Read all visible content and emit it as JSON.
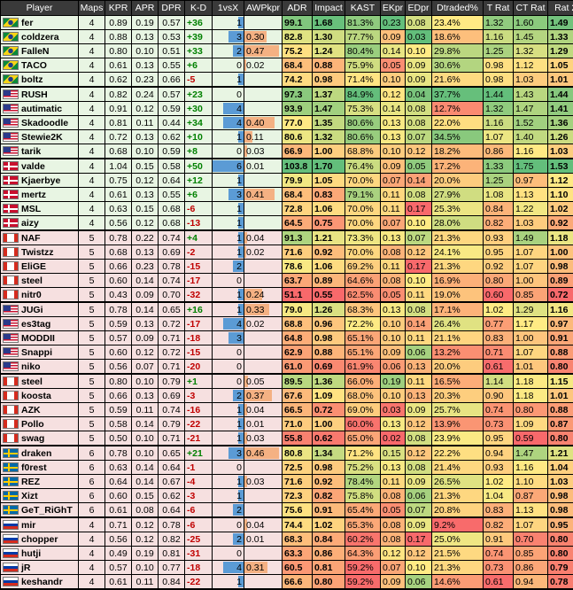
{
  "headers": [
    "Player",
    "Maps",
    "KPR",
    "APR",
    "DPR",
    "K-D",
    "1vsX",
    "AWPkpr",
    "ADR",
    "Impact",
    "KAST",
    "EKpr",
    "EDpr",
    "Dtraded%",
    "T Rat",
    "CT Rat",
    "Rat 2.0"
  ],
  "teams": [
    {
      "flag": "BR",
      "bg": "#e8f5e3",
      "players": [
        {
          "name": "fer",
          "maps": "4",
          "kpr": "0.89",
          "apr": "0.19",
          "dpr": "0.57",
          "kd": "+36",
          "onevx": "1",
          "awp": "",
          "adr": "99.1",
          "impact": "1.68",
          "kast": "81.3%",
          "ekpr": "0.23",
          "edpr": "0.08",
          "dtr": "23.4%",
          "trat": "1.32",
          "ctrat": "1.60",
          "rat": "1.49"
        },
        {
          "name": "coldzera",
          "maps": "4",
          "kpr": "0.88",
          "apr": "0.13",
          "dpr": "0.53",
          "kd": "+39",
          "onevx": "3",
          "awp": "0.30",
          "adr": "82.8",
          "impact": "1.30",
          "kast": "77.7%",
          "ekpr": "0.09",
          "edpr": "0.03",
          "dtr": "18.6%",
          "trat": "1.16",
          "ctrat": "1.45",
          "rat": "1.33"
        },
        {
          "name": "FalleN",
          "maps": "4",
          "kpr": "0.80",
          "apr": "0.10",
          "dpr": "0.51",
          "kd": "+33",
          "onevx": "2",
          "awp": "0.47",
          "adr": "75.2",
          "impact": "1.24",
          "kast": "80.4%",
          "ekpr": "0.14",
          "edpr": "0.10",
          "dtr": "29.8%",
          "trat": "1.25",
          "ctrat": "1.32",
          "rat": "1.29"
        },
        {
          "name": "TACO",
          "maps": "4",
          "kpr": "0.61",
          "apr": "0.13",
          "dpr": "0.55",
          "kd": "+6",
          "onevx": "0",
          "awp": "0.02",
          "adr": "68.4",
          "impact": "0.88",
          "kast": "75.9%",
          "ekpr": "0.05",
          "edpr": "0.09",
          "dtr": "30.6%",
          "trat": "0.98",
          "ctrat": "1.12",
          "rat": "1.05"
        },
        {
          "name": "boltz",
          "maps": "4",
          "kpr": "0.62",
          "apr": "0.23",
          "dpr": "0.66",
          "kd": "-5",
          "onevx": "1",
          "awp": "",
          "adr": "74.2",
          "impact": "0.98",
          "kast": "71.4%",
          "ekpr": "0.10",
          "edpr": "0.09",
          "dtr": "21.6%",
          "trat": "0.98",
          "ctrat": "1.03",
          "rat": "1.01"
        }
      ]
    },
    {
      "flag": "US",
      "bg": "#e8f5e3",
      "players": [
        {
          "name": "RUSH",
          "maps": "4",
          "kpr": "0.82",
          "apr": "0.24",
          "dpr": "0.57",
          "kd": "+23",
          "onevx": "0",
          "awp": "",
          "adr": "97.3",
          "impact": "1.37",
          "kast": "84.9%",
          "ekpr": "0.12",
          "edpr": "0.04",
          "dtr": "37.7%",
          "trat": "1.44",
          "ctrat": "1.43",
          "rat": "1.44"
        },
        {
          "name": "autimatic",
          "maps": "4",
          "kpr": "0.91",
          "apr": "0.12",
          "dpr": "0.59",
          "kd": "+30",
          "onevx": "4",
          "awp": "",
          "adr": "93.9",
          "impact": "1.47",
          "kast": "75.3%",
          "ekpr": "0.14",
          "edpr": "0.08",
          "dtr": "12.7%",
          "trat": "1.32",
          "ctrat": "1.47",
          "rat": "1.41"
        },
        {
          "name": "Skadoodle",
          "maps": "4",
          "kpr": "0.81",
          "apr": "0.11",
          "dpr": "0.44",
          "kd": "+34",
          "onevx": "4",
          "awp": "0.40",
          "adr": "77.0",
          "impact": "1.35",
          "kast": "80.6%",
          "ekpr": "0.13",
          "edpr": "0.08",
          "dtr": "22.0%",
          "trat": "1.16",
          "ctrat": "1.52",
          "rat": "1.36"
        },
        {
          "name": "Stewie2K",
          "maps": "4",
          "kpr": "0.72",
          "apr": "0.13",
          "dpr": "0.62",
          "kd": "+10",
          "onevx": "1",
          "awp": "0.11",
          "adr": "80.6",
          "impact": "1.32",
          "kast": "80.6%",
          "ekpr": "0.13",
          "edpr": "0.07",
          "dtr": "34.5%",
          "trat": "1.07",
          "ctrat": "1.40",
          "rat": "1.26"
        },
        {
          "name": "tarik",
          "maps": "4",
          "kpr": "0.68",
          "apr": "0.10",
          "dpr": "0.59",
          "kd": "+8",
          "onevx": "0",
          "awp": "0.03",
          "adr": "66.9",
          "impact": "1.00",
          "kast": "68.8%",
          "ekpr": "0.10",
          "edpr": "0.12",
          "dtr": "18.2%",
          "trat": "0.86",
          "ctrat": "1.16",
          "rat": "1.03"
        }
      ]
    },
    {
      "flag": "DK",
      "bg": "#e8f5e3",
      "players": [
        {
          "name": "valde",
          "maps": "4",
          "kpr": "1.04",
          "apr": "0.15",
          "dpr": "0.58",
          "kd": "+50",
          "onevx": "6",
          "awp": "0.01",
          "adr": "103.8",
          "impact": "1.70",
          "kast": "76.4%",
          "ekpr": "0.09",
          "edpr": "0.05",
          "dtr": "17.2%",
          "trat": "1.33",
          "ctrat": "1.75",
          "rat": "1.53"
        },
        {
          "name": "Kjaerbye",
          "maps": "4",
          "kpr": "0.75",
          "apr": "0.12",
          "dpr": "0.64",
          "kd": "+12",
          "onevx": "1",
          "awp": "",
          "adr": "79.9",
          "impact": "1.05",
          "kast": "70.0%",
          "ekpr": "0.07",
          "edpr": "0.14",
          "dtr": "20.0%",
          "trat": "1.25",
          "ctrat": "0.97",
          "rat": "1.12"
        },
        {
          "name": "mertz",
          "maps": "4",
          "kpr": "0.61",
          "apr": "0.13",
          "dpr": "0.55",
          "kd": "+6",
          "onevx": "3",
          "awp": "0.41",
          "adr": "68.4",
          "impact": "0.83",
          "kast": "79.1%",
          "ekpr": "0.11",
          "edpr": "0.08",
          "dtr": "27.9%",
          "trat": "1.08",
          "ctrat": "1.13",
          "rat": "1.10"
        },
        {
          "name": "MSL",
          "maps": "4",
          "kpr": "0.63",
          "apr": "0.15",
          "dpr": "0.68",
          "kd": "-6",
          "onevx": "1",
          "awp": "",
          "adr": "72.8",
          "impact": "1.06",
          "kast": "70.0%",
          "ekpr": "0.11",
          "edpr": "0.17",
          "dtr": "25.3%",
          "trat": "0.84",
          "ctrat": "1.22",
          "rat": "1.02"
        },
        {
          "name": "aizy",
          "maps": "4",
          "kpr": "0.56",
          "apr": "0.12",
          "dpr": "0.68",
          "kd": "-13",
          "onevx": "1",
          "awp": "",
          "adr": "64.5",
          "impact": "0.75",
          "kast": "70.0%",
          "ekpr": "0.07",
          "edpr": "0.10",
          "dtr": "28.0%",
          "trat": "0.82",
          "ctrat": "1.03",
          "rat": "0.92"
        }
      ]
    },
    {
      "flag": "CA",
      "bg": "#f6e0e0",
      "players": [
        {
          "name": "NAF",
          "maps": "5",
          "kpr": "0.78",
          "apr": "0.22",
          "dpr": "0.74",
          "kd": "+4",
          "onevx": "1",
          "awp": "0.04",
          "adr": "91.3",
          "impact": "1.21",
          "kast": "73.3%",
          "ekpr": "0.13",
          "edpr": "0.07",
          "dtr": "21.3%",
          "trat": "0.93",
          "ctrat": "1.49",
          "rat": "1.18"
        },
        {
          "name": "Twistzz",
          "maps": "5",
          "kpr": "0.68",
          "apr": "0.13",
          "dpr": "0.69",
          "kd": "-2",
          "onevx": "1",
          "awp": "0.02",
          "adr": "71.6",
          "impact": "0.92",
          "kast": "70.0%",
          "ekpr": "0.08",
          "edpr": "0.12",
          "dtr": "24.1%",
          "trat": "0.95",
          "ctrat": "1.07",
          "rat": "1.00"
        },
        {
          "name": "EliGE",
          "maps": "5",
          "kpr": "0.66",
          "apr": "0.23",
          "dpr": "0.78",
          "kd": "-15",
          "onevx": "2",
          "awp": "",
          "adr": "78.6",
          "impact": "1.06",
          "kast": "69.2%",
          "ekpr": "0.11",
          "edpr": "0.17",
          "dtr": "21.3%",
          "trat": "0.92",
          "ctrat": "1.07",
          "rat": "0.98"
        },
        {
          "name": "steel",
          "maps": "5",
          "kpr": "0.60",
          "apr": "0.14",
          "dpr": "0.74",
          "kd": "-17",
          "onevx": "0",
          "awp": "",
          "adr": "63.7",
          "impact": "0.89",
          "kast": "64.6%",
          "ekpr": "0.08",
          "edpr": "0.10",
          "dtr": "16.9%",
          "trat": "0.80",
          "ctrat": "1.00",
          "rat": "0.89"
        },
        {
          "name": "nitr0",
          "maps": "5",
          "kpr": "0.43",
          "apr": "0.09",
          "dpr": "0.70",
          "kd": "-32",
          "onevx": "1",
          "awp": "0.24",
          "adr": "51.1",
          "impact": "0.55",
          "kast": "62.5%",
          "ekpr": "0.05",
          "edpr": "0.11",
          "dtr": "19.0%",
          "trat": "0.60",
          "ctrat": "0.85",
          "rat": "0.72"
        }
      ]
    },
    {
      "flag": "US",
      "bg": "#f6e0e0",
      "players": [
        {
          "name": "JUGi",
          "maps": "5",
          "kpr": "0.78",
          "apr": "0.14",
          "dpr": "0.65",
          "kd": "+16",
          "onevx": "1",
          "awp": "0.33",
          "adr": "79.0",
          "impact": "1.26",
          "kast": "68.3%",
          "ekpr": "0.13",
          "edpr": "0.08",
          "dtr": "17.1%",
          "trat": "1.02",
          "ctrat": "1.29",
          "rat": "1.16"
        },
        {
          "name": "es3tag",
          "maps": "5",
          "kpr": "0.59",
          "apr": "0.13",
          "dpr": "0.72",
          "kd": "-17",
          "onevx": "4",
          "awp": "0.02",
          "adr": "68.8",
          "impact": "0.96",
          "kast": "72.2%",
          "ekpr": "0.10",
          "edpr": "0.14",
          "dtr": "26.4%",
          "trat": "0.77",
          "ctrat": "1.17",
          "rat": "0.97"
        },
        {
          "name": "MODDII",
          "maps": "5",
          "kpr": "0.57",
          "apr": "0.09",
          "dpr": "0.71",
          "kd": "-18",
          "onevx": "3",
          "awp": "",
          "adr": "64.8",
          "impact": "0.98",
          "kast": "65.1%",
          "ekpr": "0.10",
          "edpr": "0.11",
          "dtr": "21.1%",
          "trat": "0.83",
          "ctrat": "1.00",
          "rat": "0.91"
        },
        {
          "name": "Snappi",
          "maps": "5",
          "kpr": "0.60",
          "apr": "0.12",
          "dpr": "0.72",
          "kd": "-15",
          "onevx": "0",
          "awp": "",
          "adr": "62.9",
          "impact": "0.88",
          "kast": "65.1%",
          "ekpr": "0.09",
          "edpr": "0.06",
          "dtr": "13.2%",
          "trat": "0.71",
          "ctrat": "1.07",
          "rat": "0.88"
        },
        {
          "name": "niko",
          "maps": "5",
          "kpr": "0.56",
          "apr": "0.07",
          "dpr": "0.71",
          "kd": "-20",
          "onevx": "0",
          "awp": "",
          "adr": "61.0",
          "impact": "0.69",
          "kast": "61.9%",
          "ekpr": "0.06",
          "edpr": "0.13",
          "dtr": "20.0%",
          "trat": "0.61",
          "ctrat": "1.01",
          "rat": "0.80"
        }
      ]
    },
    {
      "flag": "CA",
      "bg": "#f6e0e0",
      "players": [
        {
          "name": "steel",
          "maps": "5",
          "kpr": "0.80",
          "apr": "0.10",
          "dpr": "0.79",
          "kd": "+1",
          "onevx": "0",
          "awp": "0.05",
          "adr": "89.5",
          "impact": "1.36",
          "kast": "66.0%",
          "ekpr": "0.19",
          "edpr": "0.11",
          "dtr": "16.5%",
          "trat": "1.14",
          "ctrat": "1.18",
          "rat": "1.15"
        },
        {
          "name": "koosta",
          "maps": "5",
          "kpr": "0.66",
          "apr": "0.13",
          "dpr": "0.69",
          "kd": "-3",
          "onevx": "2",
          "awp": "0.37",
          "adr": "67.6",
          "impact": "1.09",
          "kast": "68.0%",
          "ekpr": "0.10",
          "edpr": "0.13",
          "dtr": "20.3%",
          "trat": "0.90",
          "ctrat": "1.18",
          "rat": "1.01"
        },
        {
          "name": "AZK",
          "maps": "5",
          "kpr": "0.59",
          "apr": "0.11",
          "dpr": "0.74",
          "kd": "-16",
          "onevx": "1",
          "awp": "0.04",
          "adr": "66.5",
          "impact": "0.72",
          "kast": "69.0%",
          "ekpr": "0.03",
          "edpr": "0.09",
          "dtr": "25.7%",
          "trat": "0.74",
          "ctrat": "0.80",
          "rat": "0.88"
        },
        {
          "name": "Pollo",
          "maps": "5",
          "kpr": "0.58",
          "apr": "0.14",
          "dpr": "0.79",
          "kd": "-22",
          "onevx": "1",
          "awp": "0.01",
          "adr": "71.0",
          "impact": "1.00",
          "kast": "60.0%",
          "ekpr": "0.13",
          "edpr": "0.12",
          "dtr": "13.9%",
          "trat": "0.73",
          "ctrat": "1.09",
          "rat": "0.87"
        },
        {
          "name": "swag",
          "maps": "5",
          "kpr": "0.50",
          "apr": "0.10",
          "dpr": "0.71",
          "kd": "-21",
          "onevx": "1",
          "awp": "0.03",
          "adr": "55.8",
          "impact": "0.62",
          "kast": "65.0%",
          "ekpr": "0.02",
          "edpr": "0.08",
          "dtr": "23.9%",
          "trat": "0.95",
          "ctrat": "0.59",
          "rat": "0.80"
        }
      ]
    },
    {
      "flag": "SE",
      "bg": "#f6e0e0",
      "players": [
        {
          "name": "draken",
          "maps": "6",
          "kpr": "0.78",
          "apr": "0.10",
          "dpr": "0.65",
          "kd": "+21",
          "onevx": "3",
          "awp": "0.46",
          "adr": "80.8",
          "impact": "1.34",
          "kast": "71.2%",
          "ekpr": "0.15",
          "edpr": "0.12",
          "dtr": "22.2%",
          "trat": "0.94",
          "ctrat": "1.47",
          "rat": "1.21"
        },
        {
          "name": "f0rest",
          "maps": "6",
          "kpr": "0.63",
          "apr": "0.14",
          "dpr": "0.64",
          "kd": "-1",
          "onevx": "0",
          "awp": "",
          "adr": "72.5",
          "impact": "0.98",
          "kast": "75.2%",
          "ekpr": "0.13",
          "edpr": "0.08",
          "dtr": "21.4%",
          "trat": "0.93",
          "ctrat": "1.16",
          "rat": "1.04"
        },
        {
          "name": "REZ",
          "maps": "6",
          "kpr": "0.64",
          "apr": "0.14",
          "dpr": "0.67",
          "kd": "-4",
          "onevx": "1",
          "awp": "0.03",
          "adr": "71.6",
          "impact": "0.92",
          "kast": "78.4%",
          "ekpr": "0.11",
          "edpr": "0.09",
          "dtr": "26.5%",
          "trat": "1.02",
          "ctrat": "1.10",
          "rat": "1.03"
        },
        {
          "name": "Xizt",
          "maps": "6",
          "kpr": "0.60",
          "apr": "0.15",
          "dpr": "0.62",
          "kd": "-3",
          "onevx": "1",
          "awp": "",
          "adr": "72.3",
          "impact": "0.82",
          "kast": "75.8%",
          "ekpr": "0.08",
          "edpr": "0.06",
          "dtr": "21.3%",
          "trat": "1.04",
          "ctrat": "0.87",
          "rat": "0.98"
        },
        {
          "name": "GeT_RiGhT",
          "maps": "6",
          "kpr": "0.61",
          "apr": "0.08",
          "dpr": "0.64",
          "kd": "-6",
          "onevx": "2",
          "awp": "",
          "adr": "75.6",
          "impact": "0.91",
          "kast": "65.4%",
          "ekpr": "0.05",
          "edpr": "0.07",
          "dtr": "20.8%",
          "trat": "0.83",
          "ctrat": "1.13",
          "rat": "0.98"
        }
      ]
    },
    {
      "flag": "RU",
      "bg": "#f6e0e0",
      "players": [
        {
          "name": "mir",
          "maps": "4",
          "kpr": "0.71",
          "apr": "0.12",
          "dpr": "0.78",
          "kd": "-6",
          "onevx": "0",
          "awp": "0.04",
          "adr": "74.4",
          "impact": "1.02",
          "kast": "65.3%",
          "ekpr": "0.08",
          "edpr": "0.09",
          "dtr": "9.2%",
          "trat": "0.82",
          "ctrat": "1.07",
          "rat": "0.95"
        },
        {
          "name": "chopper",
          "maps": "4",
          "kpr": "0.56",
          "apr": "0.12",
          "dpr": "0.82",
          "kd": "-25",
          "onevx": "2",
          "awp": "0.01",
          "adr": "68.3",
          "impact": "0.84",
          "kast": "60.2%",
          "ekpr": "0.08",
          "edpr": "0.17",
          "dtr": "25.0%",
          "trat": "0.91",
          "ctrat": "0.70",
          "rat": "0.80"
        },
        {
          "name": "hutji",
          "maps": "4",
          "kpr": "0.49",
          "apr": "0.19",
          "dpr": "0.81",
          "kd": "-31",
          "onevx": "0",
          "awp": "",
          "adr": "63.3",
          "impact": "0.86",
          "kast": "64.3%",
          "ekpr": "0.12",
          "edpr": "0.12",
          "dtr": "21.5%",
          "trat": "0.74",
          "ctrat": "0.85",
          "rat": "0.80"
        },
        {
          "name": "jR",
          "maps": "4",
          "kpr": "0.57",
          "apr": "0.10",
          "dpr": "0.77",
          "kd": "-18",
          "onevx": "4",
          "awp": "0.31",
          "adr": "60.5",
          "impact": "0.81",
          "kast": "59.2%",
          "ekpr": "0.07",
          "edpr": "0.10",
          "dtr": "21.3%",
          "trat": "0.73",
          "ctrat": "0.86",
          "rat": "0.79"
        },
        {
          "name": "keshandr",
          "maps": "4",
          "kpr": "0.61",
          "apr": "0.11",
          "dpr": "0.84",
          "kd": "-22",
          "onevx": "1",
          "awp": "",
          "adr": "66.6",
          "impact": "0.80",
          "kast": "59.2%",
          "ekpr": "0.09",
          "edpr": "0.06",
          "dtr": "14.6%",
          "trat": "0.61",
          "ctrat": "0.94",
          "rat": "0.78"
        }
      ]
    }
  ],
  "colors": {
    "header_bg": "#3a3a3a",
    "good": "#63be7b",
    "mid": "#ffeb84",
    "bad": "#f8696b",
    "kd_positive": "#008000",
    "kd_negative": "#c00000",
    "bar_fill": "#5b9bd5",
    "awp_bar": "#f4b183"
  }
}
